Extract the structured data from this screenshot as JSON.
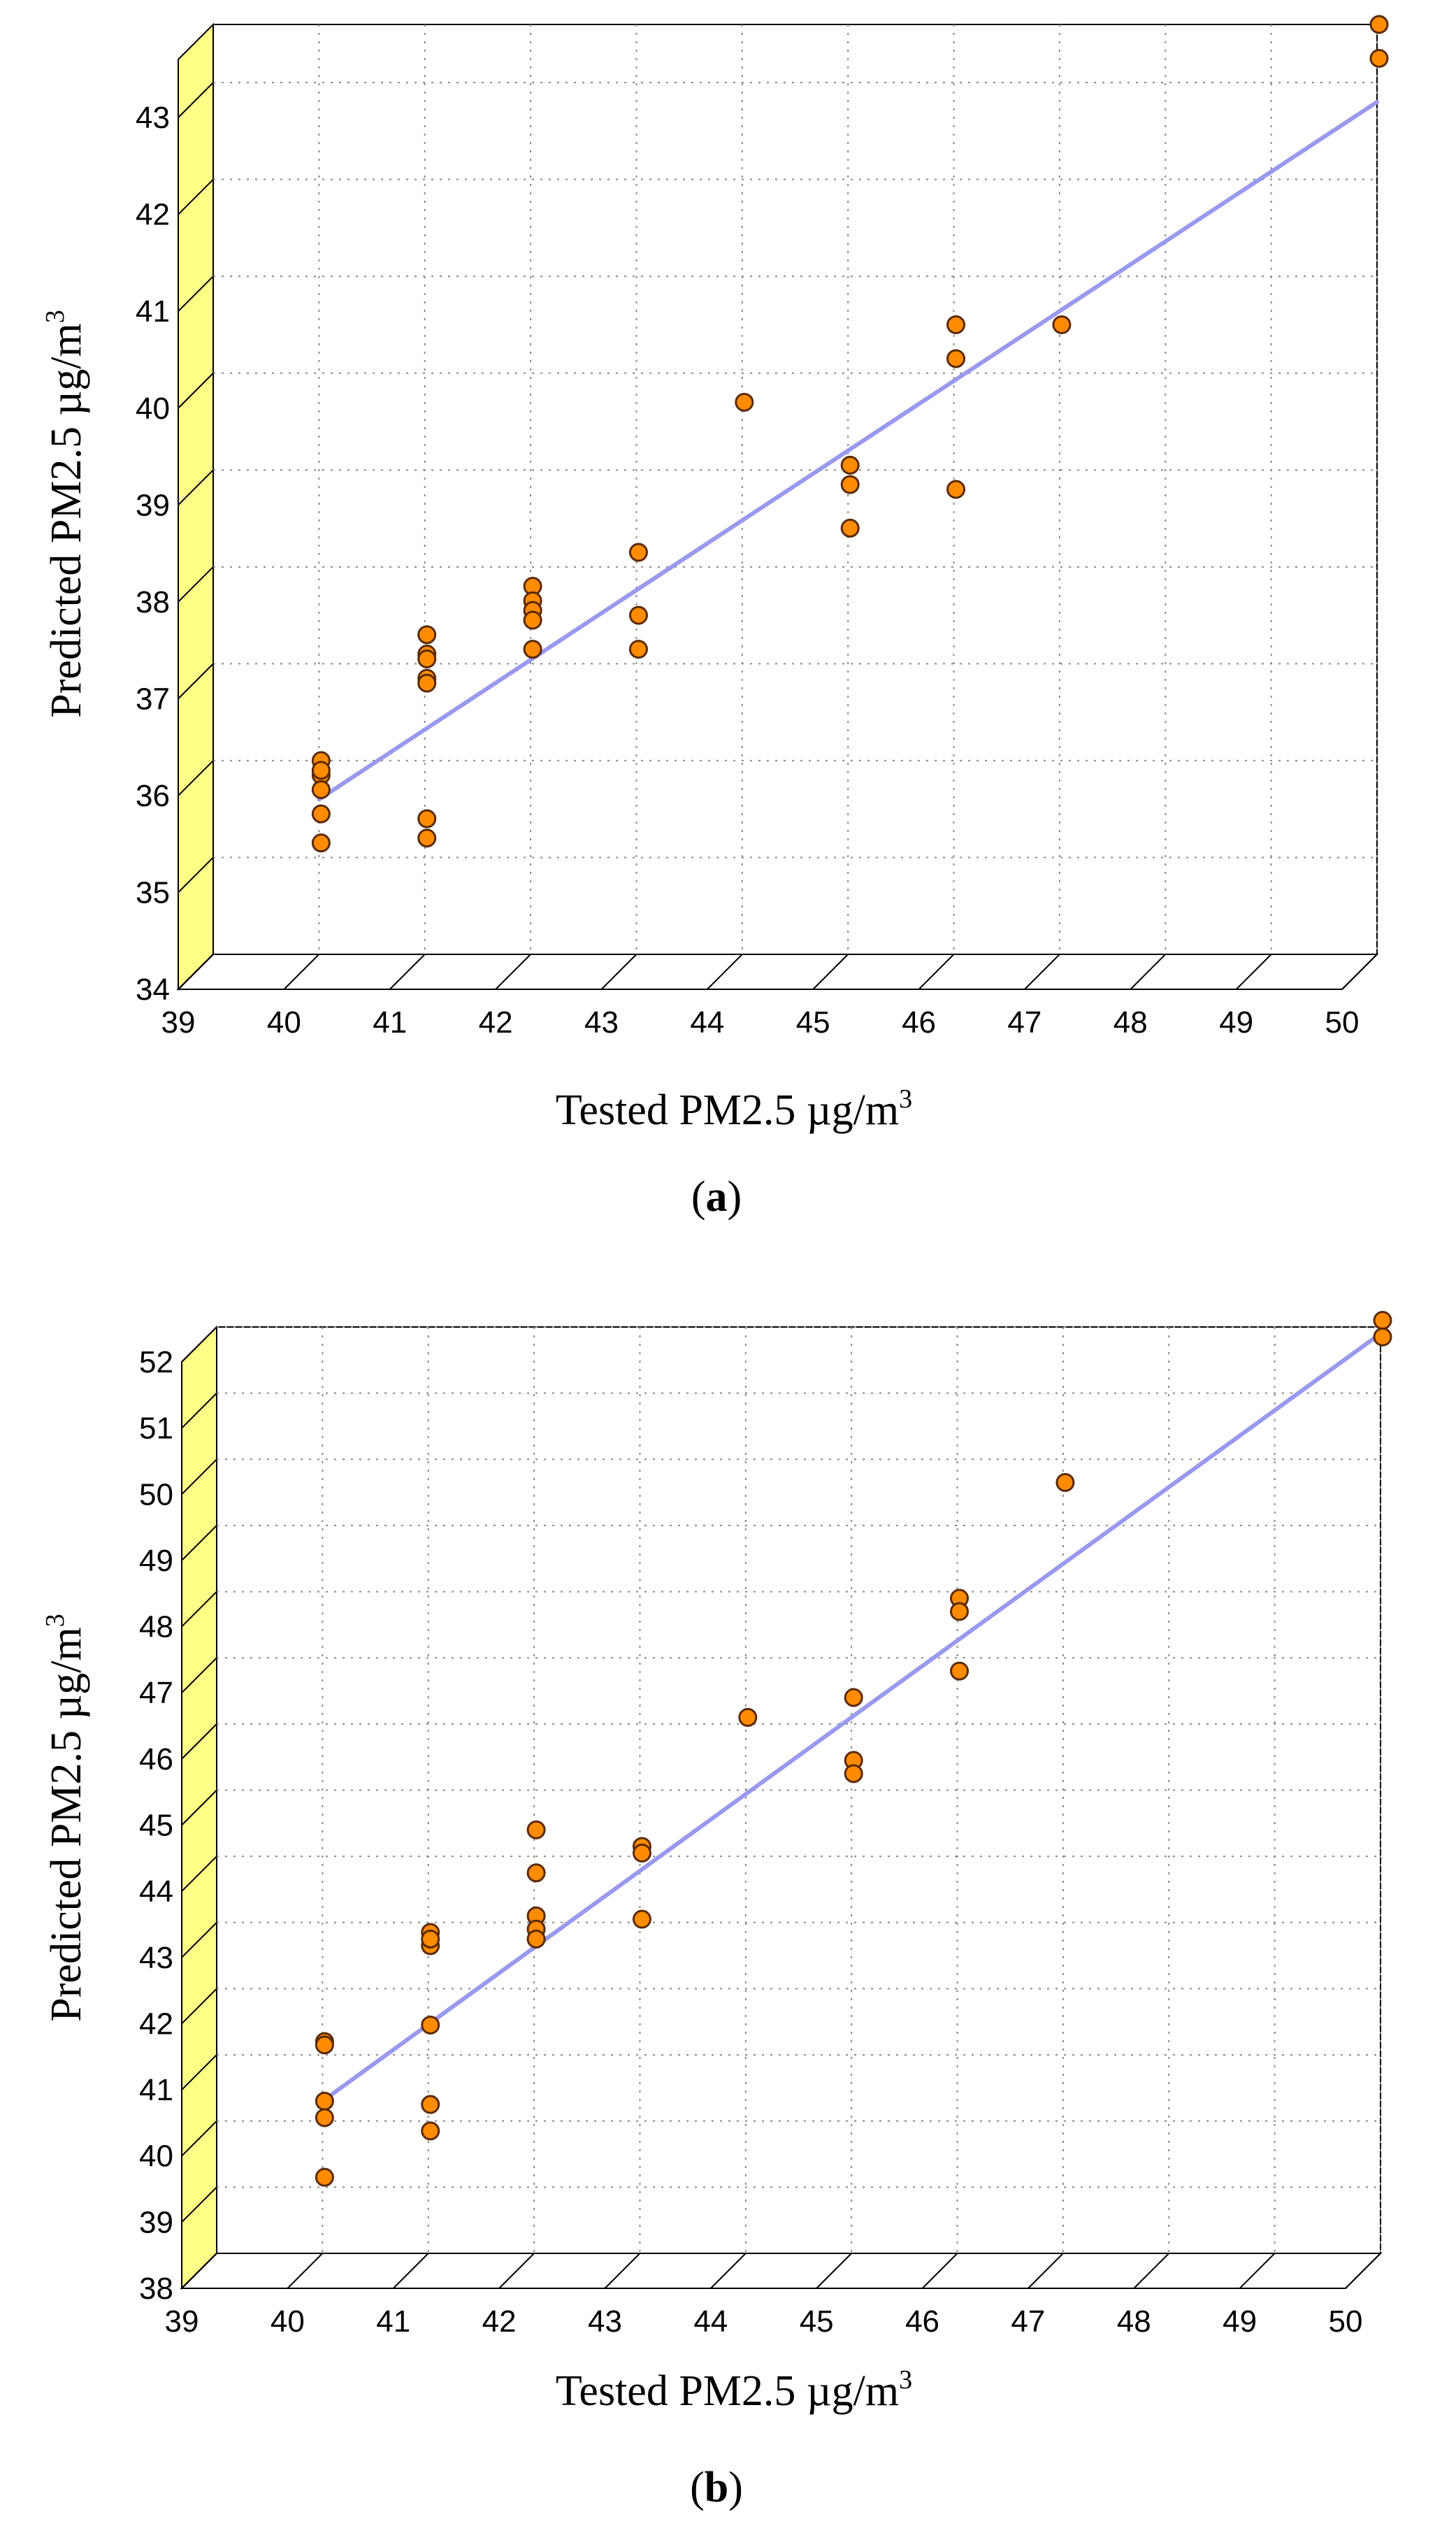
{
  "chart_data": [
    {
      "type": "scatter",
      "panel_label": "a",
      "xlabel": "Tested PM2.5 µg/m",
      "ylabel": "Predicted PM2.5 µg/m",
      "unit_superscript": "3",
      "xlim": [
        39,
        50
      ],
      "ylim": [
        34,
        43.6
      ],
      "x_ticks": [
        39,
        40,
        41,
        42,
        43,
        44,
        45,
        46,
        47,
        48,
        49,
        50
      ],
      "y_ticks": [
        34,
        35,
        36,
        37,
        38,
        39,
        40,
        41,
        42,
        43
      ],
      "grid": true,
      "colors": {
        "points": "#ff8c00",
        "point_edge": "#5a2a00",
        "fit_line": "#9999ee",
        "side_wall": "#ffff88"
      },
      "fit_line": {
        "x": [
          40,
          50
        ],
        "y": [
          35.6,
          42.8
        ]
      },
      "points": {
        "x": [
          40,
          40,
          40,
          40,
          40,
          40,
          41,
          41,
          41,
          41,
          41,
          41,
          41,
          42,
          42,
          42,
          42,
          42,
          43,
          43,
          43,
          44,
          45,
          45,
          45,
          46,
          46,
          46,
          47,
          50,
          50
        ],
        "y": [
          36.0,
          35.85,
          35.7,
          35.45,
          35.15,
          35.9,
          37.3,
          37.1,
          36.85,
          36.8,
          35.4,
          35.2,
          37.05,
          37.8,
          37.65,
          37.55,
          37.45,
          37.15,
          38.15,
          37.5,
          37.15,
          39.7,
          39.05,
          38.85,
          38.4,
          40.5,
          40.15,
          38.8,
          40.5,
          43.6,
          43.25
        ]
      }
    },
    {
      "type": "scatter",
      "panel_label": "b",
      "xlabel": "Tested PM2.5 µg/m",
      "ylabel": "Predicted PM2.5 µg/m",
      "unit_superscript": "3",
      "xlim": [
        39,
        50
      ],
      "ylim": [
        38,
        52
      ],
      "x_ticks": [
        39,
        40,
        41,
        42,
        43,
        44,
        45,
        46,
        47,
        48,
        49,
        50
      ],
      "y_ticks": [
        38,
        39,
        40,
        41,
        42,
        43,
        44,
        45,
        46,
        47,
        48,
        49,
        50,
        51,
        52
      ],
      "grid": true,
      "colors": {
        "points": "#ff8c00",
        "point_edge": "#5a2a00",
        "fit_line": "#9999ee",
        "side_wall": "#ffff88"
      },
      "fit_line": {
        "x": [
          40,
          50
        ],
        "y": [
          40.3,
          51.9
        ]
      },
      "points": {
        "x": [
          40,
          40,
          40,
          40,
          40,
          41,
          41,
          41,
          41,
          41,
          41,
          42,
          42,
          42,
          42,
          42,
          43,
          43,
          43,
          44,
          45,
          45,
          45,
          46,
          46,
          46,
          47,
          50,
          50
        ],
        "y": [
          41.2,
          41.15,
          40.3,
          40.05,
          39.15,
          42.85,
          42.65,
          41.45,
          40.25,
          39.85,
          42.75,
          44.4,
          43.75,
          43.1,
          42.9,
          42.75,
          44.15,
          44.05,
          43.05,
          46.1,
          46.4,
          45.45,
          45.25,
          47.9,
          47.7,
          46.8,
          49.65,
          52.1,
          51.85
        ]
      }
    }
  ]
}
